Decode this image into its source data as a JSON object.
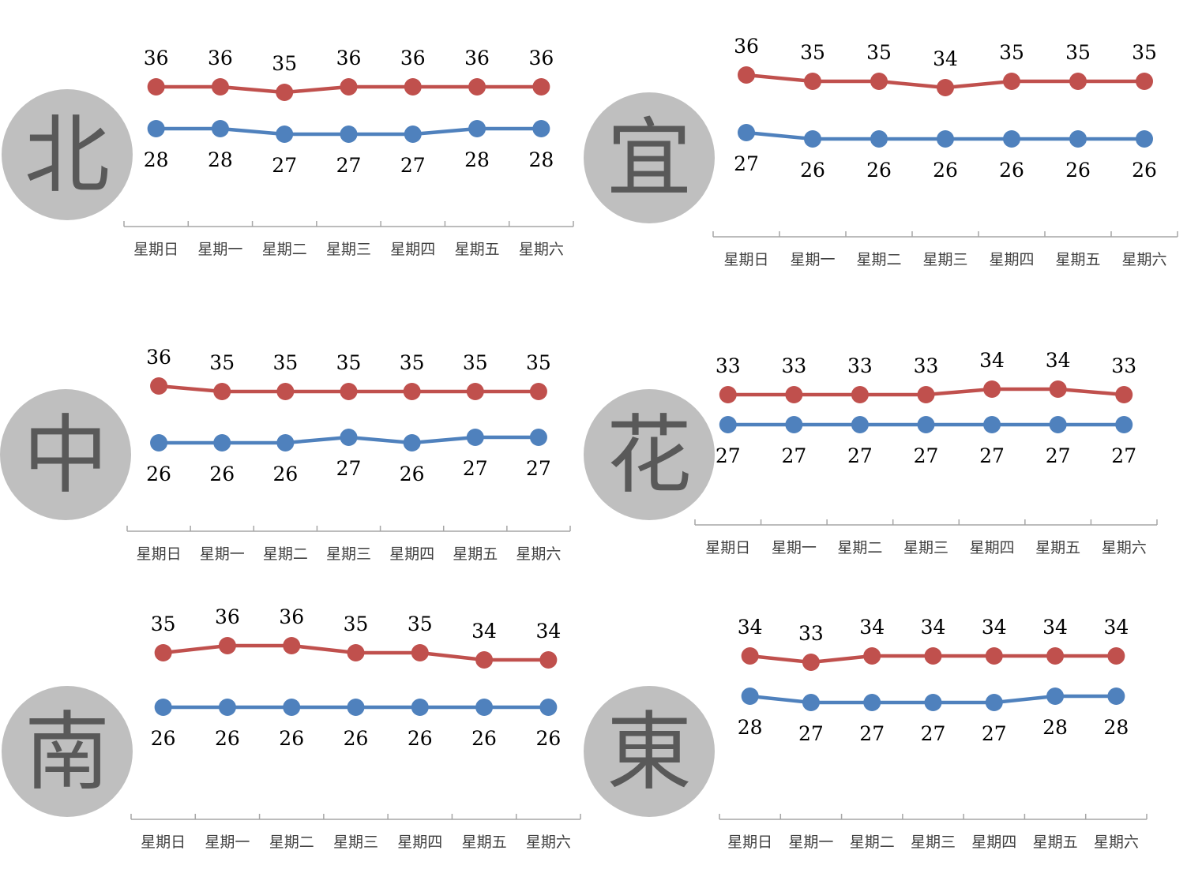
{
  "colors": {
    "high": "#C0504D",
    "low": "#4F81BD",
    "badge_fill": "#BFBFBF",
    "badge_text": "#595959",
    "axis": "#A6A6A6",
    "label_text": "#000000"
  },
  "chart_data": [
    {
      "type": "line",
      "badge": "北",
      "categories": [
        "星期日",
        "星期一",
        "星期二",
        "星期三",
        "星期四",
        "星期五",
        "星期六"
      ],
      "series": [
        {
          "key": "high",
          "values": [
            36,
            36,
            35,
            36,
            36,
            36,
            36
          ]
        },
        {
          "key": "low",
          "values": [
            28,
            28,
            27,
            27,
            27,
            28,
            28
          ]
        }
      ],
      "legend": "none",
      "grid": false
    },
    {
      "type": "line",
      "badge": "宜",
      "categories": [
        "星期日",
        "星期一",
        "星期二",
        "星期三",
        "星期四",
        "星期五",
        "星期六"
      ],
      "series": [
        {
          "key": "high",
          "values": [
            36,
            35,
            35,
            34,
            35,
            35,
            35
          ]
        },
        {
          "key": "low",
          "values": [
            27,
            26,
            26,
            26,
            26,
            26,
            26
          ]
        }
      ],
      "legend": "none",
      "grid": false
    },
    {
      "type": "line",
      "badge": "中",
      "categories": [
        "星期日",
        "星期一",
        "星期二",
        "星期三",
        "星期四",
        "星期五",
        "星期六"
      ],
      "series": [
        {
          "key": "high",
          "values": [
            36,
            35,
            35,
            35,
            35,
            35,
            35
          ]
        },
        {
          "key": "low",
          "values": [
            26,
            26,
            26,
            27,
            26,
            27,
            27
          ]
        }
      ],
      "legend": "none",
      "grid": false
    },
    {
      "type": "line",
      "badge": "花",
      "categories": [
        "星期日",
        "星期一",
        "星期二",
        "星期三",
        "星期四",
        "星期五",
        "星期六"
      ],
      "series": [
        {
          "key": "high",
          "values": [
            33,
            33,
            33,
            33,
            34,
            34,
            33
          ]
        },
        {
          "key": "low",
          "values": [
            27,
            27,
            27,
            27,
            27,
            27,
            27
          ]
        }
      ],
      "legend": "none",
      "grid": false
    },
    {
      "type": "line",
      "badge": "南",
      "categories": [
        "星期日",
        "星期一",
        "星期二",
        "星期三",
        "星期四",
        "星期五",
        "星期六"
      ],
      "series": [
        {
          "key": "high",
          "values": [
            35,
            36,
            36,
            35,
            35,
            34,
            34
          ]
        },
        {
          "key": "low",
          "values": [
            26,
            26,
            26,
            26,
            26,
            26,
            26
          ]
        }
      ],
      "legend": "none",
      "grid": false
    },
    {
      "type": "line",
      "badge": "東",
      "categories": [
        "星期日",
        "星期一",
        "星期二",
        "星期三",
        "星期四",
        "星期五",
        "星期六"
      ],
      "series": [
        {
          "key": "high",
          "values": [
            34,
            33,
            34,
            34,
            34,
            34,
            34
          ]
        },
        {
          "key": "low",
          "values": [
            28,
            27,
            27,
            27,
            27,
            28,
            28
          ]
        }
      ],
      "legend": "none",
      "grid": false
    }
  ]
}
